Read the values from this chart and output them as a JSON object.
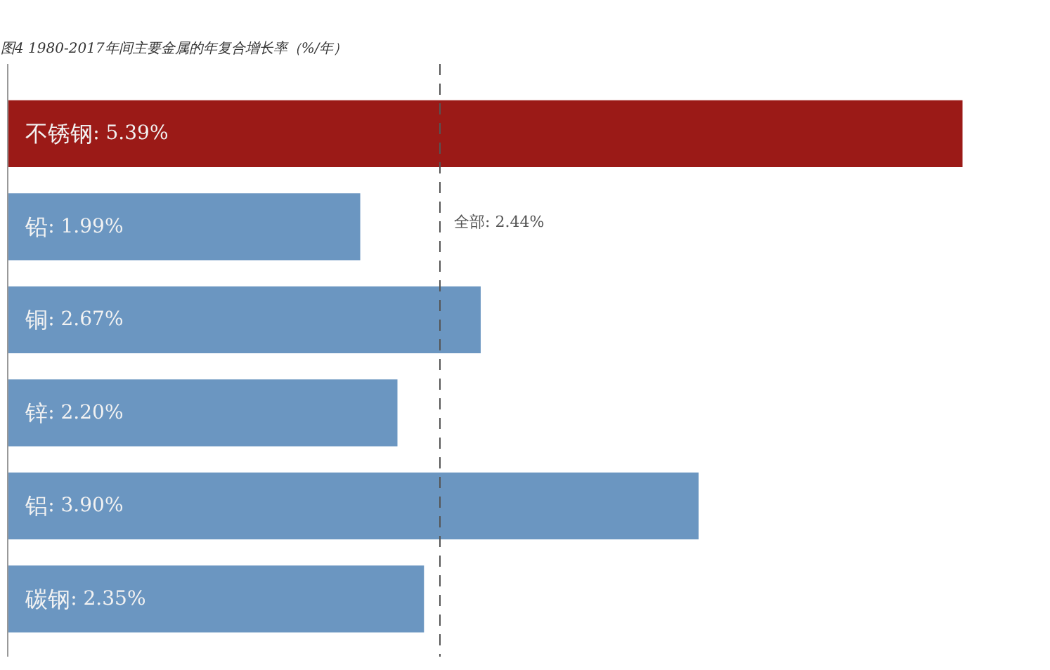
{
  "chart_data": {
    "type": "bar",
    "orientation": "horizontal",
    "title": "图4  1980-2017年间主要金属的年复合增长率（%/年）",
    "categories": [
      "不锈钢",
      "铅",
      "铜",
      "锌",
      "铝",
      "碳钢"
    ],
    "values": [
      5.39,
      1.99,
      2.67,
      2.2,
      3.9,
      2.35
    ],
    "colors": [
      "#9b1a17",
      "#6b96c1",
      "#6b96c1",
      "#6b96c1",
      "#6b96c1",
      "#6b96c1"
    ],
    "value_labels": [
      ": 5.39%",
      ": 1.99%",
      ": 2.67%",
      ": 2.20%",
      ": 3.90%",
      ": 2.35%"
    ],
    "ref_lines": [
      {
        "axis": "x",
        "value": 2.44,
        "label": "全部: 2.44%",
        "color": "#555555",
        "line_style": "dashed"
      }
    ],
    "grid": false
  }
}
